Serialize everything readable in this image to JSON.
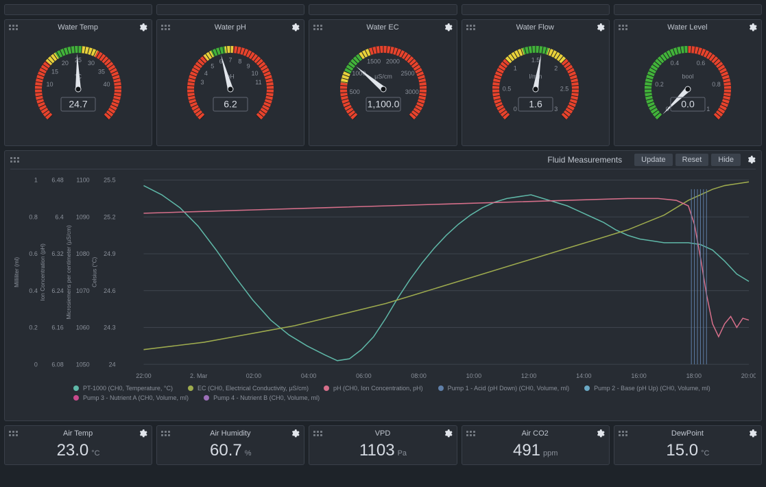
{
  "colors": {
    "background": "#1e2329",
    "panel": "#272c33",
    "panel_border": "#3a404a",
    "text": "#c0c6cf",
    "text_dim": "#8a909a",
    "gauge_green": "#42b23a",
    "gauge_yellow": "#e8d03a",
    "gauge_red": "#e8432c",
    "needle": "#e1e5eb",
    "grid": "#3d434c"
  },
  "gauges": [
    {
      "title": "Water Temp",
      "unit": "°C",
      "value": "24.7",
      "value_num": 24.7,
      "min": 0,
      "max": 50,
      "ticks": [
        {
          "v": 10,
          "l": "10"
        },
        {
          "v": 15,
          "l": "15"
        },
        {
          "v": 20,
          "l": "20"
        },
        {
          "v": 25,
          "l": "25"
        },
        {
          "v": 30,
          "l": "30"
        },
        {
          "v": 35,
          "l": "35"
        },
        {
          "v": 40,
          "l": "40"
        }
      ],
      "zones": [
        {
          "from": 0,
          "to": 16,
          "color": "#e8432c"
        },
        {
          "from": 16,
          "to": 19,
          "color": "#e8d03a"
        },
        {
          "from": 19,
          "to": 26,
          "color": "#42b23a"
        },
        {
          "from": 26,
          "to": 30,
          "color": "#e8d03a"
        },
        {
          "from": 30,
          "to": 50,
          "color": "#e8432c"
        }
      ]
    },
    {
      "title": "Water pH",
      "unit": "pH",
      "value": "6.2",
      "value_num": 6.2,
      "min": 0,
      "max": 14,
      "ticks": [
        {
          "v": 3,
          "l": "3"
        },
        {
          "v": 4,
          "l": "4"
        },
        {
          "v": 5,
          "l": "5"
        },
        {
          "v": 6,
          "l": "6"
        },
        {
          "v": 7,
          "l": "7"
        },
        {
          "v": 8,
          "l": "8"
        },
        {
          "v": 9,
          "l": "9"
        },
        {
          "v": 10,
          "l": "10"
        },
        {
          "v": 11,
          "l": "11"
        }
      ],
      "zones": [
        {
          "from": 0,
          "to": 5,
          "color": "#e8432c"
        },
        {
          "from": 5,
          "to": 5.6,
          "color": "#e8d03a"
        },
        {
          "from": 5.6,
          "to": 6.6,
          "color": "#42b23a"
        },
        {
          "from": 6.6,
          "to": 7.2,
          "color": "#e8d03a"
        },
        {
          "from": 7.2,
          "to": 14,
          "color": "#e8432c"
        }
      ]
    },
    {
      "title": "Water EC",
      "unit": "µS/cm",
      "value": "1,100.0",
      "value_num": 1100,
      "min": 0,
      "max": 3500,
      "ticks": [
        {
          "v": 500,
          "l": "500"
        },
        {
          "v": 1000,
          "l": "1000"
        },
        {
          "v": 1500,
          "l": "1500"
        },
        {
          "v": 2000,
          "l": "2000"
        },
        {
          "v": 2500,
          "l": "2500"
        },
        {
          "v": 3000,
          "l": "3000"
        }
      ],
      "zones": [
        {
          "from": 0,
          "to": 700,
          "color": "#e8432c"
        },
        {
          "from": 700,
          "to": 900,
          "color": "#e8d03a"
        },
        {
          "from": 900,
          "to": 1300,
          "color": "#42b23a"
        },
        {
          "from": 1300,
          "to": 1500,
          "color": "#e8d03a"
        },
        {
          "from": 1500,
          "to": 3500,
          "color": "#e8432c"
        }
      ]
    },
    {
      "title": "Water Flow",
      "unit": "l/min",
      "value": "1.6",
      "value_num": 1.6,
      "min": 0,
      "max": 3,
      "ticks": [
        {
          "v": 0,
          "l": "0"
        },
        {
          "v": 0.5,
          "l": "0.5"
        },
        {
          "v": 1,
          "l": "1"
        },
        {
          "v": 1.5,
          "l": "1.5"
        },
        {
          "v": 2,
          "l": "2"
        },
        {
          "v": 2.5,
          "l": "2.5"
        },
        {
          "v": 3,
          "l": "3"
        }
      ],
      "zones": [
        {
          "from": 0,
          "to": 1,
          "color": "#e8432c"
        },
        {
          "from": 1,
          "to": 1.3,
          "color": "#e8d03a"
        },
        {
          "from": 1.3,
          "to": 1.7,
          "color": "#42b23a"
        },
        {
          "from": 1.7,
          "to": 2.0,
          "color": "#e8d03a"
        },
        {
          "from": 2.0,
          "to": 3,
          "color": "#e8432c"
        }
      ]
    },
    {
      "title": "Water Level",
      "unit": "bool",
      "value": "0.0",
      "value_num": 0,
      "min": 0,
      "max": 1,
      "ticks": [
        {
          "v": 0,
          "l": "0"
        },
        {
          "v": 0.2,
          "l": "0.2"
        },
        {
          "v": 0.4,
          "l": "0.4"
        },
        {
          "v": 0.6,
          "l": "0.6"
        },
        {
          "v": 0.8,
          "l": "0.8"
        },
        {
          "v": 1,
          "l": "1"
        }
      ],
      "zones": [
        {
          "from": 0,
          "to": 0.5,
          "color": "#42b23a"
        },
        {
          "from": 0.5,
          "to": 1,
          "color": "#e8432c"
        }
      ]
    }
  ],
  "chart": {
    "title": "Fluid Measurements",
    "buttons": [
      "Update",
      "Reset",
      "Hide"
    ],
    "plot_bg": "#272c33",
    "grid_color": "#3d434c",
    "x_ticks": [
      "22:00",
      "2. Mar",
      "02:00",
      "04:00",
      "06:00",
      "08:00",
      "10:00",
      "12:00",
      "14:00",
      "16:00",
      "18:00",
      "20:00"
    ],
    "y_axes": [
      {
        "label": "Milliliter (ml)",
        "ticks": [
          "0",
          "0.2",
          "0.4",
          "0.6",
          "0.8",
          "1"
        ]
      },
      {
        "label": "Ion Concentration (pH)",
        "ticks": [
          "6.08",
          "6.16",
          "6.24",
          "6.32",
          "6.4",
          "6.48"
        ]
      },
      {
        "label": "Microsiemens per centimeter (µS/cm)",
        "ticks": [
          "1050",
          "1060",
          "1070",
          "1080",
          "1090",
          "1100"
        ]
      },
      {
        "label": "Celsius (°C)",
        "ticks": [
          "24",
          "24.3",
          "24.6",
          "24.9",
          "25.2",
          "25.5"
        ]
      }
    ],
    "legend": [
      {
        "color": "#5fb8a8",
        "label": "PT-1000 (CH0, Temperature, °C)"
      },
      {
        "color": "#9eab4e",
        "label": "EC (CH0, Electrical Conductivity, µS/cm)"
      },
      {
        "color": "#d66f8a",
        "label": "pH (CH0, Ion Concentration, pH)"
      },
      {
        "color": "#5f7fa8",
        "label": "Pump 1 - Acid (pH Down) (CH0, Volume, ml)"
      },
      {
        "color": "#6aa8c4",
        "label": "Pump 2 - Base (pH Up) (CH0, Volume, ml)"
      },
      {
        "color": "#c84a8c",
        "label": "Pump 3 - Nutrient A (CH0, Volume, ml)"
      },
      {
        "color": "#9c6fb8",
        "label": "Pump 4 - Nutrient B (CH0, Volume, ml)"
      }
    ],
    "series": {
      "temperature": {
        "color": "#5fb8a8",
        "points": [
          [
            0,
            0.97
          ],
          [
            0.03,
            0.92
          ],
          [
            0.06,
            0.85
          ],
          [
            0.09,
            0.75
          ],
          [
            0.12,
            0.62
          ],
          [
            0.15,
            0.48
          ],
          [
            0.18,
            0.35
          ],
          [
            0.21,
            0.24
          ],
          [
            0.24,
            0.16
          ],
          [
            0.27,
            0.1
          ],
          [
            0.3,
            0.05
          ],
          [
            0.32,
            0.02
          ],
          [
            0.34,
            0.03
          ],
          [
            0.36,
            0.08
          ],
          [
            0.38,
            0.15
          ],
          [
            0.4,
            0.25
          ],
          [
            0.42,
            0.36
          ],
          [
            0.44,
            0.46
          ],
          [
            0.46,
            0.55
          ],
          [
            0.48,
            0.63
          ],
          [
            0.5,
            0.7
          ],
          [
            0.52,
            0.76
          ],
          [
            0.54,
            0.81
          ],
          [
            0.56,
            0.85
          ],
          [
            0.58,
            0.88
          ],
          [
            0.6,
            0.9
          ],
          [
            0.62,
            0.91
          ],
          [
            0.64,
            0.92
          ],
          [
            0.66,
            0.9
          ],
          [
            0.68,
            0.88
          ],
          [
            0.7,
            0.86
          ],
          [
            0.72,
            0.83
          ],
          [
            0.74,
            0.8
          ],
          [
            0.76,
            0.77
          ],
          [
            0.78,
            0.73
          ],
          [
            0.8,
            0.7
          ],
          [
            0.82,
            0.68
          ],
          [
            0.84,
            0.67
          ],
          [
            0.86,
            0.66
          ],
          [
            0.88,
            0.66
          ],
          [
            0.9,
            0.66
          ],
          [
            0.92,
            0.65
          ],
          [
            0.94,
            0.62
          ],
          [
            0.96,
            0.56
          ],
          [
            0.98,
            0.49
          ],
          [
            1.0,
            0.45
          ]
        ]
      },
      "ec": {
        "color": "#9eab4e",
        "points": [
          [
            0,
            0.08
          ],
          [
            0.05,
            0.1
          ],
          [
            0.1,
            0.12
          ],
          [
            0.15,
            0.15
          ],
          [
            0.2,
            0.18
          ],
          [
            0.25,
            0.21
          ],
          [
            0.3,
            0.25
          ],
          [
            0.35,
            0.29
          ],
          [
            0.4,
            0.33
          ],
          [
            0.45,
            0.38
          ],
          [
            0.5,
            0.43
          ],
          [
            0.55,
            0.48
          ],
          [
            0.6,
            0.53
          ],
          [
            0.65,
            0.58
          ],
          [
            0.7,
            0.63
          ],
          [
            0.75,
            0.68
          ],
          [
            0.8,
            0.73
          ],
          [
            0.83,
            0.77
          ],
          [
            0.86,
            0.81
          ],
          [
            0.88,
            0.85
          ],
          [
            0.9,
            0.89
          ],
          [
            0.92,
            0.92
          ],
          [
            0.94,
            0.95
          ],
          [
            0.96,
            0.97
          ],
          [
            0.98,
            0.98
          ],
          [
            1.0,
            0.99
          ]
        ]
      },
      "ph": {
        "color": "#d66f8a",
        "points": [
          [
            0,
            0.82
          ],
          [
            0.1,
            0.83
          ],
          [
            0.2,
            0.84
          ],
          [
            0.3,
            0.85
          ],
          [
            0.4,
            0.86
          ],
          [
            0.5,
            0.87
          ],
          [
            0.6,
            0.88
          ],
          [
            0.7,
            0.89
          ],
          [
            0.8,
            0.9
          ],
          [
            0.85,
            0.9
          ],
          [
            0.88,
            0.89
          ],
          [
            0.9,
            0.86
          ],
          [
            0.91,
            0.76
          ],
          [
            0.92,
            0.58
          ],
          [
            0.93,
            0.38
          ],
          [
            0.94,
            0.22
          ],
          [
            0.95,
            0.15
          ],
          [
            0.96,
            0.22
          ],
          [
            0.97,
            0.26
          ],
          [
            0.98,
            0.2
          ],
          [
            0.99,
            0.25
          ],
          [
            1.0,
            0.24
          ]
        ]
      },
      "pump_spikes": {
        "color": "#5f7fa8",
        "xs": [
          0.905,
          0.91,
          0.915,
          0.92,
          0.925,
          0.93
        ]
      }
    }
  },
  "stats": [
    {
      "title": "Air Temp",
      "value": "23.0",
      "unit": "°C"
    },
    {
      "title": "Air Humidity",
      "value": "60.7",
      "unit": "%"
    },
    {
      "title": "VPD",
      "value": "1103",
      "unit": "Pa"
    },
    {
      "title": "Air CO2",
      "value": "491",
      "unit": "ppm"
    },
    {
      "title": "DewPoint",
      "value": "15.0",
      "unit": "°C"
    }
  ]
}
